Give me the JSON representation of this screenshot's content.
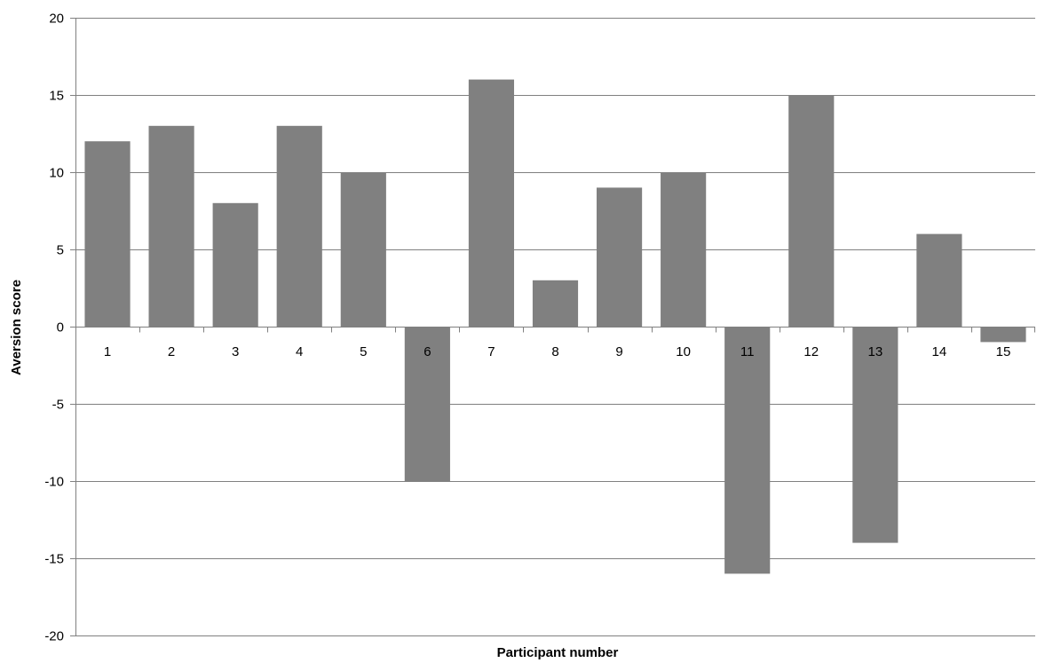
{
  "chart_data": {
    "type": "bar",
    "title": "",
    "xlabel": "Participant number",
    "ylabel": "Aversion score",
    "categories": [
      "1",
      "2",
      "3",
      "4",
      "5",
      "6",
      "7",
      "8",
      "9",
      "10",
      "11",
      "12",
      "13",
      "14",
      "15"
    ],
    "series": [
      {
        "values": [
          12,
          13,
          8,
          13,
          10,
          -10,
          16,
          3,
          9,
          10,
          -16,
          15,
          -14,
          6,
          -1
        ]
      }
    ],
    "ylim": [
      -20,
      20
    ],
    "yticks": [
      20,
      15,
      10,
      5,
      0,
      -5,
      -10,
      -15,
      -20
    ],
    "grid": true,
    "legend": "none",
    "colors": {
      "bar": "#808080",
      "grid": "#808080"
    }
  }
}
